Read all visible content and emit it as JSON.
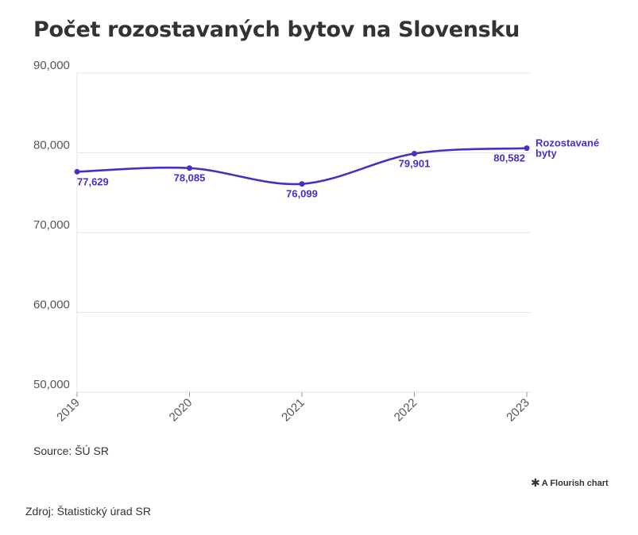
{
  "page": {
    "title": "Počet rozostavaných bytov na Slovensku",
    "source": "Source: ŠÚ SR",
    "flourish_credit": "A Flourish chart",
    "footer_source": "Zdroj: Štatistický úrad SR"
  },
  "colors": {
    "series": "#4a2ec4",
    "grid": "#e6e6e6",
    "axis_text": "#555555"
  },
  "chart_data": {
    "type": "line",
    "title": "Počet rozostavaných bytov na Slovensku",
    "xlabel": "",
    "ylabel": "",
    "x": [
      "2019",
      "2020",
      "2021",
      "2022",
      "2023"
    ],
    "ylim": [
      50000,
      90000
    ],
    "yticks": [
      50000,
      60000,
      70000,
      80000,
      90000
    ],
    "ytick_labels": [
      "50,000",
      "60,000",
      "70,000",
      "80,000",
      "90,000"
    ],
    "grid": true,
    "legend": "none",
    "series": [
      {
        "name": "Rozostavané byty",
        "values": [
          77629,
          78085,
          76099,
          79901,
          80582
        ],
        "labels": [
          "77,629",
          "78,085",
          "76,099",
          "79,901",
          "80,582"
        ]
      }
    ]
  }
}
